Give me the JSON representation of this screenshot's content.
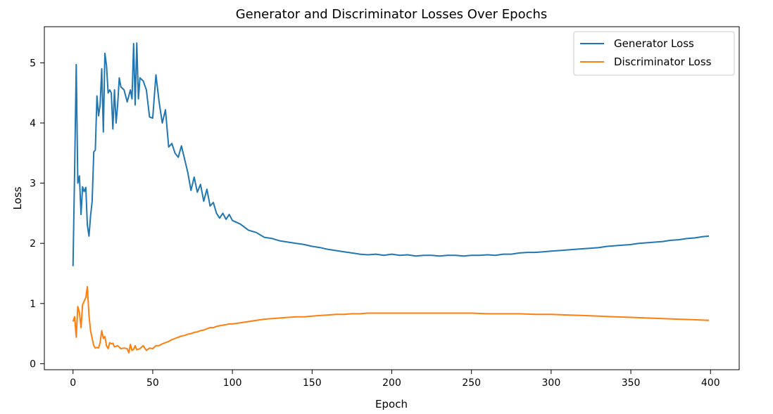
{
  "chart_data": {
    "type": "line",
    "title": "Generator and Discriminator Losses Over Epochs",
    "xlabel": "Epoch",
    "ylabel": "Loss",
    "xlim": [
      -18,
      418
    ],
    "ylim": [
      -0.1,
      5.6
    ],
    "xticks": [
      0,
      50,
      100,
      150,
      200,
      250,
      300,
      350,
      400
    ],
    "yticks": [
      0,
      1,
      2,
      3,
      4,
      5
    ],
    "grid": false,
    "legend_position": "top-right",
    "series": [
      {
        "name": "Generator Loss",
        "color": "#1f77b4",
        "points": [
          [
            0,
            1.62
          ],
          [
            1,
            3.2
          ],
          [
            2,
            4.97
          ],
          [
            3,
            3.0
          ],
          [
            4,
            3.12
          ],
          [
            5,
            2.48
          ],
          [
            6,
            2.94
          ],
          [
            7,
            2.86
          ],
          [
            8,
            2.93
          ],
          [
            9,
            2.3
          ],
          [
            10,
            2.12
          ],
          [
            11,
            2.45
          ],
          [
            12,
            2.7
          ],
          [
            13,
            3.52
          ],
          [
            14,
            3.55
          ],
          [
            15,
            4.45
          ],
          [
            16,
            4.12
          ],
          [
            17,
            4.3
          ],
          [
            18,
            4.9
          ],
          [
            19,
            3.85
          ],
          [
            20,
            5.16
          ],
          [
            21,
            4.95
          ],
          [
            22,
            4.5
          ],
          [
            23,
            4.55
          ],
          [
            24,
            4.5
          ],
          [
            25,
            3.9
          ],
          [
            26,
            4.55
          ],
          [
            27,
            4.0
          ],
          [
            28,
            4.3
          ],
          [
            29,
            4.75
          ],
          [
            30,
            4.6
          ],
          [
            32,
            4.55
          ],
          [
            34,
            4.35
          ],
          [
            36,
            4.55
          ],
          [
            37,
            4.4
          ],
          [
            38,
            5.32
          ],
          [
            39,
            4.3
          ],
          [
            40,
            5.33
          ],
          [
            41,
            4.4
          ],
          [
            42,
            4.75
          ],
          [
            44,
            4.7
          ],
          [
            46,
            4.55
          ],
          [
            48,
            4.1
          ],
          [
            50,
            4.08
          ],
          [
            52,
            4.8
          ],
          [
            54,
            4.35
          ],
          [
            56,
            4.0
          ],
          [
            58,
            4.22
          ],
          [
            60,
            3.6
          ],
          [
            62,
            3.66
          ],
          [
            64,
            3.5
          ],
          [
            66,
            3.43
          ],
          [
            68,
            3.62
          ],
          [
            70,
            3.4
          ],
          [
            72,
            3.18
          ],
          [
            74,
            2.88
          ],
          [
            76,
            3.1
          ],
          [
            78,
            2.85
          ],
          [
            80,
            2.98
          ],
          [
            82,
            2.7
          ],
          [
            84,
            2.9
          ],
          [
            86,
            2.62
          ],
          [
            88,
            2.68
          ],
          [
            90,
            2.5
          ],
          [
            92,
            2.42
          ],
          [
            94,
            2.5
          ],
          [
            96,
            2.4
          ],
          [
            98,
            2.48
          ],
          [
            100,
            2.38
          ],
          [
            105,
            2.32
          ],
          [
            110,
            2.22
          ],
          [
            115,
            2.18
          ],
          [
            120,
            2.1
          ],
          [
            125,
            2.08
          ],
          [
            130,
            2.04
          ],
          [
            135,
            2.02
          ],
          [
            140,
            2.0
          ],
          [
            145,
            1.98
          ],
          [
            150,
            1.95
          ],
          [
            155,
            1.93
          ],
          [
            160,
            1.9
          ],
          [
            165,
            1.88
          ],
          [
            170,
            1.86
          ],
          [
            175,
            1.84
          ],
          [
            180,
            1.82
          ],
          [
            185,
            1.81
          ],
          [
            190,
            1.82
          ],
          [
            195,
            1.8
          ],
          [
            200,
            1.82
          ],
          [
            205,
            1.8
          ],
          [
            210,
            1.81
          ],
          [
            215,
            1.79
          ],
          [
            220,
            1.8
          ],
          [
            225,
            1.8
          ],
          [
            230,
            1.79
          ],
          [
            235,
            1.8
          ],
          [
            240,
            1.8
          ],
          [
            245,
            1.79
          ],
          [
            250,
            1.8
          ],
          [
            255,
            1.8
          ],
          [
            260,
            1.81
          ],
          [
            265,
            1.8
          ],
          [
            270,
            1.82
          ],
          [
            275,
            1.82
          ],
          [
            280,
            1.84
          ],
          [
            285,
            1.85
          ],
          [
            290,
            1.85
          ],
          [
            295,
            1.86
          ],
          [
            300,
            1.87
          ],
          [
            305,
            1.88
          ],
          [
            310,
            1.89
          ],
          [
            315,
            1.9
          ],
          [
            320,
            1.91
          ],
          [
            325,
            1.92
          ],
          [
            330,
            1.93
          ],
          [
            335,
            1.95
          ],
          [
            340,
            1.96
          ],
          [
            345,
            1.97
          ],
          [
            350,
            1.98
          ],
          [
            355,
            2.0
          ],
          [
            360,
            2.01
          ],
          [
            365,
            2.02
          ],
          [
            370,
            2.03
          ],
          [
            375,
            2.05
          ],
          [
            380,
            2.06
          ],
          [
            385,
            2.08
          ],
          [
            390,
            2.09
          ],
          [
            395,
            2.11
          ],
          [
            399,
            2.12
          ]
        ]
      },
      {
        "name": "Discriminator Loss",
        "color": "#ff7f0e",
        "points": [
          [
            0,
            0.7
          ],
          [
            1,
            0.78
          ],
          [
            2,
            0.44
          ],
          [
            3,
            0.95
          ],
          [
            4,
            0.85
          ],
          [
            5,
            0.6
          ],
          [
            6,
            0.98
          ],
          [
            8,
            1.1
          ],
          [
            9,
            1.28
          ],
          [
            10,
            0.8
          ],
          [
            11,
            0.55
          ],
          [
            12,
            0.42
          ],
          [
            13,
            0.3
          ],
          [
            14,
            0.26
          ],
          [
            15,
            0.27
          ],
          [
            16,
            0.26
          ],
          [
            17,
            0.35
          ],
          [
            18,
            0.55
          ],
          [
            19,
            0.42
          ],
          [
            20,
            0.45
          ],
          [
            21,
            0.3
          ],
          [
            22,
            0.25
          ],
          [
            23,
            0.35
          ],
          [
            24,
            0.33
          ],
          [
            25,
            0.34
          ],
          [
            26,
            0.28
          ],
          [
            28,
            0.3
          ],
          [
            30,
            0.25
          ],
          [
            32,
            0.26
          ],
          [
            34,
            0.25
          ],
          [
            35,
            0.18
          ],
          [
            36,
            0.32
          ],
          [
            37,
            0.22
          ],
          [
            38,
            0.24
          ],
          [
            39,
            0.3
          ],
          [
            40,
            0.23
          ],
          [
            42,
            0.25
          ],
          [
            44,
            0.3
          ],
          [
            46,
            0.22
          ],
          [
            48,
            0.26
          ],
          [
            50,
            0.25
          ],
          [
            52,
            0.3
          ],
          [
            54,
            0.3
          ],
          [
            56,
            0.33
          ],
          [
            58,
            0.35
          ],
          [
            60,
            0.37
          ],
          [
            62,
            0.4
          ],
          [
            64,
            0.42
          ],
          [
            66,
            0.44
          ],
          [
            68,
            0.46
          ],
          [
            70,
            0.47
          ],
          [
            72,
            0.49
          ],
          [
            74,
            0.5
          ],
          [
            76,
            0.52
          ],
          [
            78,
            0.53
          ],
          [
            80,
            0.55
          ],
          [
            82,
            0.56
          ],
          [
            84,
            0.58
          ],
          [
            86,
            0.6
          ],
          [
            88,
            0.6
          ],
          [
            90,
            0.62
          ],
          [
            92,
            0.63
          ],
          [
            94,
            0.64
          ],
          [
            96,
            0.65
          ],
          [
            98,
            0.66
          ],
          [
            100,
            0.66
          ],
          [
            105,
            0.68
          ],
          [
            110,
            0.7
          ],
          [
            115,
            0.72
          ],
          [
            120,
            0.74
          ],
          [
            125,
            0.75
          ],
          [
            130,
            0.76
          ],
          [
            135,
            0.77
          ],
          [
            140,
            0.78
          ],
          [
            145,
            0.78
          ],
          [
            150,
            0.79
          ],
          [
            155,
            0.8
          ],
          [
            160,
            0.81
          ],
          [
            165,
            0.82
          ],
          [
            170,
            0.82
          ],
          [
            175,
            0.83
          ],
          [
            180,
            0.83
          ],
          [
            185,
            0.84
          ],
          [
            190,
            0.84
          ],
          [
            195,
            0.84
          ],
          [
            200,
            0.84
          ],
          [
            210,
            0.84
          ],
          [
            220,
            0.84
          ],
          [
            230,
            0.84
          ],
          [
            240,
            0.84
          ],
          [
            250,
            0.84
          ],
          [
            260,
            0.83
          ],
          [
            270,
            0.83
          ],
          [
            280,
            0.83
          ],
          [
            290,
            0.82
          ],
          [
            300,
            0.82
          ],
          [
            310,
            0.81
          ],
          [
            320,
            0.8
          ],
          [
            330,
            0.79
          ],
          [
            340,
            0.78
          ],
          [
            350,
            0.77
          ],
          [
            360,
            0.76
          ],
          [
            370,
            0.75
          ],
          [
            380,
            0.74
          ],
          [
            390,
            0.73
          ],
          [
            399,
            0.72
          ]
        ]
      }
    ]
  }
}
